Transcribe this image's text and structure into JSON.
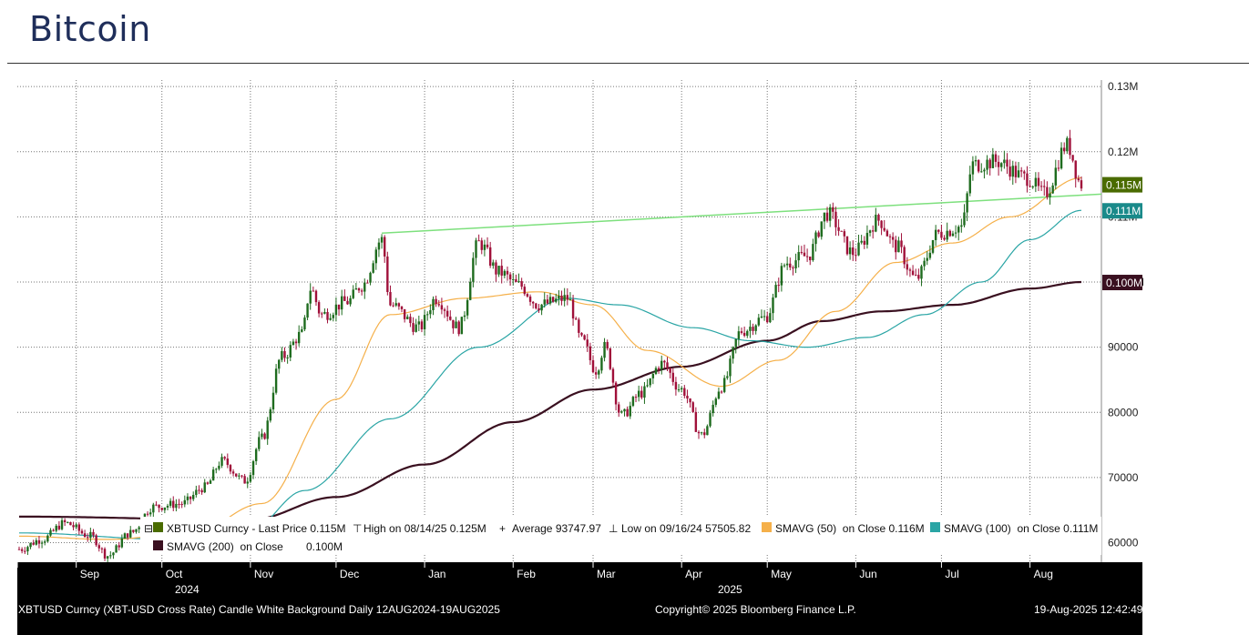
{
  "page": {
    "title": "Bitcoin"
  },
  "chart_data": {
    "type": "candlestick",
    "ticker": "XBTUSD Curncy",
    "y_ticks": [
      {
        "value": 60000,
        "label": "60000"
      },
      {
        "value": 70000,
        "label": "70000"
      },
      {
        "value": 80000,
        "label": "80000"
      },
      {
        "value": 90000,
        "label": "90000"
      },
      {
        "value": 100000,
        "label": "0.100M"
      },
      {
        "value": 110000,
        "label": "0.11M"
      },
      {
        "value": 120000,
        "label": "0.12M"
      },
      {
        "value": 130000,
        "label": "0.13M"
      }
    ],
    "ylim": [
      57000,
      131000
    ],
    "x_months": [
      "Sep",
      "Oct",
      "Nov",
      "Dec",
      "Jan",
      "Feb",
      "Mar",
      "Apr",
      "May",
      "Jun",
      "Jul",
      "Aug"
    ],
    "x_years": [
      "2024",
      "2025"
    ],
    "date_range": [
      "2024-08-12",
      "2025-08-19"
    ],
    "period": "Daily",
    "axis_tags": [
      {
        "label": "0.115M",
        "value": 115000,
        "color": "#4a6b00"
      },
      {
        "label": "0.111M",
        "value": 111000,
        "color": "#1a8a8a"
      },
      {
        "label": "0.100M",
        "value": 100000,
        "color": "#3a1020"
      }
    ],
    "price_anchors": [
      [
        "2024-08-12",
        59000
      ],
      [
        "2024-08-20",
        60500
      ],
      [
        "2024-08-28",
        63000
      ],
      [
        "2024-09-06",
        61000
      ],
      [
        "2024-09-12",
        58000
      ],
      [
        "2024-09-20",
        61500
      ],
      [
        "2024-09-28",
        65500
      ],
      [
        "2024-10-08",
        66000
      ],
      [
        "2024-10-16",
        68500
      ],
      [
        "2024-10-22",
        72500
      ],
      [
        "2024-10-30",
        69500
      ],
      [
        "2024-11-05",
        76000
      ],
      [
        "2024-11-12",
        88500
      ],
      [
        "2024-11-19",
        92000
      ],
      [
        "2024-11-22",
        99000
      ],
      [
        "2024-11-26",
        95000
      ],
      [
        "2024-12-05",
        97000
      ],
      [
        "2024-12-10",
        99500
      ],
      [
        "2024-12-17",
        106500
      ],
      [
        "2024-12-20",
        96500
      ],
      [
        "2024-12-30",
        93000
      ],
      [
        "2025-01-05",
        97500
      ],
      [
        "2025-01-13",
        93000
      ],
      [
        "2025-01-20",
        106000
      ],
      [
        "2025-01-27",
        101500
      ],
      [
        "2025-02-03",
        99500
      ],
      [
        "2025-02-10",
        96500
      ],
      [
        "2025-02-20",
        97500
      ],
      [
        "2025-02-25",
        91000
      ],
      [
        "2025-03-02",
        86500
      ],
      [
        "2025-03-05",
        90000
      ],
      [
        "2025-03-11",
        79500
      ],
      [
        "2025-03-18",
        83000
      ],
      [
        "2025-03-25",
        87500
      ],
      [
        "2025-04-01",
        83500
      ],
      [
        "2025-04-08",
        76500
      ],
      [
        "2025-04-15",
        84000
      ],
      [
        "2025-04-22",
        92500
      ],
      [
        "2025-04-30",
        94500
      ],
      [
        "2025-05-08",
        103000
      ],
      [
        "2025-05-15",
        104000
      ],
      [
        "2025-05-22",
        110500
      ],
      [
        "2025-05-31",
        104500
      ],
      [
        "2025-06-09",
        109500
      ],
      [
        "2025-06-15",
        105500
      ],
      [
        "2025-06-22",
        100500
      ],
      [
        "2025-06-30",
        107500
      ],
      [
        "2025-07-08",
        108500
      ],
      [
        "2025-07-12",
        118000
      ],
      [
        "2025-07-20",
        118500
      ],
      [
        "2025-07-31",
        116000
      ],
      [
        "2025-08-06",
        113500
      ],
      [
        "2025-08-14",
        121000
      ],
      [
        "2025-08-19",
        115000
      ]
    ],
    "sma_50_anchors": [
      [
        "2024-08-12",
        61000
      ],
      [
        "2024-09-12",
        60500
      ],
      [
        "2024-10-12",
        61500
      ],
      [
        "2024-11-05",
        66000
      ],
      [
        "2024-12-01",
        82000
      ],
      [
        "2024-12-20",
        95000
      ],
      [
        "2025-01-15",
        97500
      ],
      [
        "2025-02-10",
        98500
      ],
      [
        "2025-03-01",
        96500
      ],
      [
        "2025-03-20",
        89500
      ],
      [
        "2025-04-15",
        84000
      ],
      [
        "2025-05-05",
        88000
      ],
      [
        "2025-05-25",
        95500
      ],
      [
        "2025-06-15",
        103000
      ],
      [
        "2025-07-05",
        106000
      ],
      [
        "2025-07-25",
        110000
      ],
      [
        "2025-08-19",
        116000
      ]
    ],
    "sma_100_anchors": [
      [
        "2024-08-12",
        61500
      ],
      [
        "2024-10-05",
        60500
      ],
      [
        "2024-11-01",
        62000
      ],
      [
        "2024-11-20",
        68000
      ],
      [
        "2024-12-20",
        79000
      ],
      [
        "2025-01-20",
        90000
      ],
      [
        "2025-02-20",
        97500
      ],
      [
        "2025-03-10",
        96500
      ],
      [
        "2025-04-05",
        93000
      ],
      [
        "2025-04-25",
        91000
      ],
      [
        "2025-05-15",
        90000
      ],
      [
        "2025-06-05",
        91500
      ],
      [
        "2025-06-25",
        95000
      ],
      [
        "2025-07-15",
        100000
      ],
      [
        "2025-08-01",
        106500
      ],
      [
        "2025-08-19",
        111000
      ]
    ],
    "sma_200_anchors": [
      [
        "2024-08-12",
        64000
      ],
      [
        "2024-11-01",
        63500
      ],
      [
        "2024-12-01",
        67000
      ],
      [
        "2025-01-01",
        72000
      ],
      [
        "2025-02-01",
        78500
      ],
      [
        "2025-03-01",
        83500
      ],
      [
        "2025-04-01",
        87000
      ],
      [
        "2025-05-01",
        91000
      ],
      [
        "2025-05-20",
        94000
      ],
      [
        "2025-06-10",
        95500
      ],
      [
        "2025-07-05",
        96500
      ],
      [
        "2025-08-01",
        99000
      ],
      [
        "2025-08-19",
        100000
      ]
    ],
    "trendline": {
      "start": [
        "2024-12-17",
        107500
      ],
      "end": [
        "2025-08-19",
        113500
      ],
      "color": "#7de07d"
    },
    "legend": {
      "series": "XBTUSD Curncy - Last Price 0.115M",
      "high": "High on 08/14/25 0.125M",
      "average": "Average 93747.97",
      "low": "Low on 09/16/24 57505.82",
      "sma50": "SMAVG (50)  on Close 0.116M",
      "sma100": "SMAVG (100)  on Close 0.111M",
      "sma200": "SMAVG (200)  on Close",
      "sma200_value": "0.100M"
    },
    "colors": {
      "up_candle": "#1e6b1e",
      "down_candle": "#a0103a",
      "sma50": "#f5b04a",
      "sma100": "#2aa5a5",
      "sma200": "#3a1020",
      "last_price_swatch": "#4a6b00",
      "grid": "#777777"
    }
  },
  "footer": {
    "description": "XBTUSD Curncy (XBT-USD Cross Rate) Candle White Background  Daily 12AUG2024-19AUG2025",
    "copyright": "Copyright© 2025 Bloomberg Finance L.P.",
    "timestamp": "19-Aug-2025 12:42:49"
  }
}
